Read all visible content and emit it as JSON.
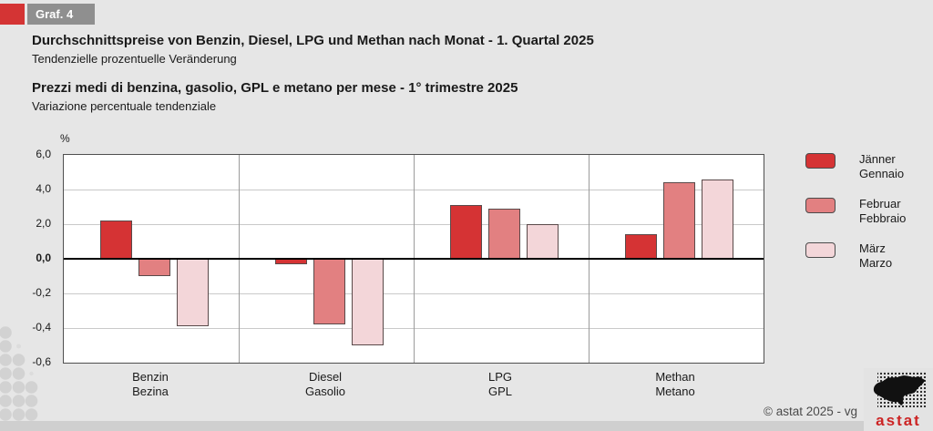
{
  "header": {
    "badge": "Graf. 4"
  },
  "titles": {
    "de": {
      "title": "Durchschnittspreise von Benzin, Diesel, LPG und Methan nach Monat - 1. Quartal 2025",
      "subtitle": "Tendenzielle prozentuelle Veränderung"
    },
    "it": {
      "title": "Prezzi medi di benzina, gasolio, GPL e metano per mese - 1° trimestre 2025",
      "subtitle": "Variazione percentuale tendenziale"
    }
  },
  "colors": {
    "accent_red": "#d43434",
    "badge_gray": "#8f8f8f",
    "logo_red": "#cc2424"
  },
  "chart_data": {
    "type": "bar",
    "unit_label": "%",
    "y_tick_labels": [
      "6,0",
      "4,0",
      "2,0",
      "0,0",
      "-0,2",
      "-0,4",
      "-0,6"
    ],
    "positive_unit_per_gridline": 2.0,
    "negative_unit_per_gridline": 0.2,
    "axis_note": "asymmetric axis as printed: positive gridlines step 2,0; negative gridlines step 0,2",
    "grid": true,
    "legend_position": "right",
    "categories": [
      {
        "de": "Benzin",
        "it": "Bezina"
      },
      {
        "de": "Diesel",
        "it": "Gasolio"
      },
      {
        "de": "LPG",
        "it": "GPL"
      },
      {
        "de": "Methan",
        "it": "Metano"
      }
    ],
    "series": [
      {
        "name_de": "Jänner",
        "name_it": "Gennaio",
        "color": "#d53334",
        "values": [
          2.2,
          -0.03,
          3.1,
          1.4
        ]
      },
      {
        "name_de": "Februar",
        "name_it": "Febbraio",
        "color": "#e28081",
        "values": [
          -0.1,
          -0.38,
          2.9,
          4.4
        ]
      },
      {
        "name_de": "März",
        "name_it": "Marzo",
        "color": "#f3d6d9",
        "values": [
          -0.39,
          -0.5,
          2.0,
          4.6
        ]
      }
    ]
  },
  "footer": {
    "copyright": "© astat 2025 - vg",
    "logo_text": "astat"
  }
}
